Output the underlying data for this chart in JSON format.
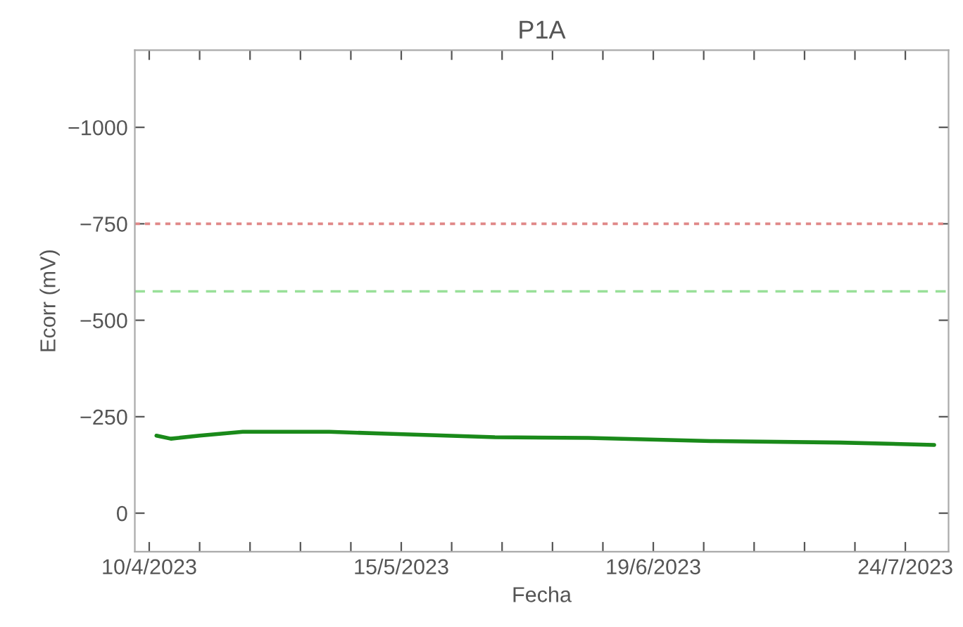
{
  "chart_data": {
    "type": "line",
    "title": "P1A",
    "xlabel": "Fecha",
    "ylabel": "Ecorr (mV)",
    "x": [
      "2023-04-11",
      "2023-04-13",
      "2023-04-17",
      "2023-04-23",
      "2023-05-05",
      "2023-05-13",
      "2023-05-28",
      "2023-06-10",
      "2023-06-27",
      "2023-07-15",
      "2023-07-28"
    ],
    "series": [
      {
        "color": "#1a8a1a",
        "values": [
          -201,
          -193,
          -201,
          -211,
          -211,
          -206,
          -197,
          -195,
          -187,
          -183,
          -177
        ]
      }
    ],
    "xlim": [
      "2023-04-08",
      "2023-07-30"
    ],
    "xticks": [
      {
        "value": "2023-04-10",
        "label": "10/4/2023"
      },
      {
        "value": "2023-04-17",
        "label": null
      },
      {
        "value": "2023-04-24",
        "label": null
      },
      {
        "value": "2023-05-01",
        "label": null
      },
      {
        "value": "2023-05-08",
        "label": null
      },
      {
        "value": "2023-05-15",
        "label": "15/5/2023"
      },
      {
        "value": "2023-05-22",
        "label": null
      },
      {
        "value": "2023-05-29",
        "label": null
      },
      {
        "value": "2023-06-05",
        "label": null
      },
      {
        "value": "2023-06-12",
        "label": null
      },
      {
        "value": "2023-06-19",
        "label": "19/6/2023"
      },
      {
        "value": "2023-06-26",
        "label": null
      },
      {
        "value": "2023-07-03",
        "label": null
      },
      {
        "value": "2023-07-10",
        "label": null
      },
      {
        "value": "2023-07-17",
        "label": null
      },
      {
        "value": "2023-07-24",
        "label": "24/7/2023"
      }
    ],
    "ylim": [
      100,
      -1200
    ],
    "yticks": [
      {
        "value": -1000,
        "label": "−1000"
      },
      {
        "value": -750,
        "label": "−750"
      },
      {
        "value": -500,
        "label": "−500"
      },
      {
        "value": -250,
        "label": "−250"
      },
      0
    ],
    "ref_lines": [
      {
        "axis": "y",
        "value": -750,
        "color": "#e08888",
        "line_style": "dotted"
      },
      {
        "axis": "y",
        "value": -575,
        "color": "#99e099",
        "line_style": "dashed"
      }
    ],
    "grid": false,
    "legend": false,
    "marker": "none",
    "line_style": "solid"
  }
}
